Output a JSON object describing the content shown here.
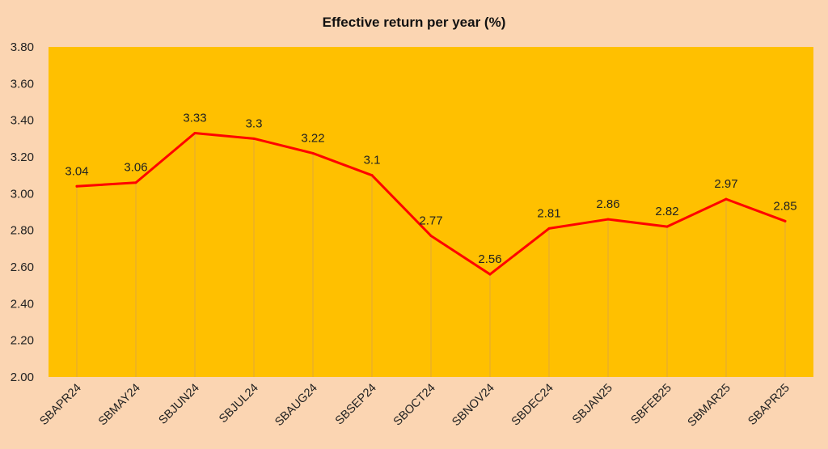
{
  "chart_data": {
    "type": "line",
    "title": "Effective return per year (%)",
    "xlabel": "",
    "ylabel": "",
    "categories": [
      "SBAPR24",
      "SBMAY24",
      "SBJUN24",
      "SBJUL24",
      "SBAUG24",
      "SBSEP24",
      "SBOCT24",
      "SBNOV24",
      "SBDEC24",
      "SBJAN25",
      "SBFEB25",
      "SBMAR25",
      "SBAPR25"
    ],
    "series": [
      {
        "values": [
          3.04,
          3.06,
          3.33,
          3.3,
          3.22,
          3.1,
          2.77,
          2.56,
          2.81,
          2.86,
          2.82,
          2.97,
          2.85
        ]
      }
    ],
    "data_labels": [
      "3.04",
      "3.06",
      "3.33",
      "3.3",
      "3.22",
      "3.1",
      "2.77",
      "2.56",
      "2.81",
      "2.86",
      "2.82",
      "2.97",
      "2.85"
    ],
    "ylim": [
      2.0,
      3.8
    ],
    "yticks": [
      "2.00",
      "2.20",
      "2.40",
      "2.60",
      "2.80",
      "3.00",
      "3.20",
      "3.40",
      "3.60",
      "3.80"
    ],
    "grid": false,
    "legend": "none",
    "colors": {
      "page_background": "#fbd5b2",
      "plot_background": "#ffc000",
      "line": "#ff0000",
      "drop_lines": "#e0a83a"
    }
  }
}
